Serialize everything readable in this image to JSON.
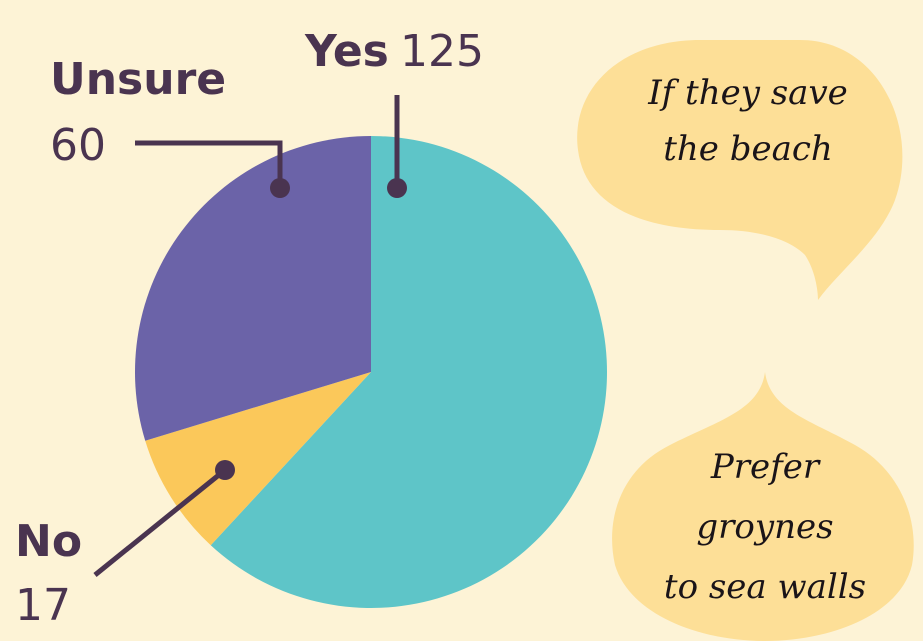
{
  "chart_data": {
    "type": "pie",
    "categories": [
      "Yes",
      "No",
      "Unsure"
    ],
    "values": [
      125,
      17,
      60
    ],
    "colors": [
      "#5ec5c8",
      "#fbc85a",
      "#6b63a8"
    ],
    "annotations": [
      [
        "If they save",
        "the beach"
      ],
      [
        "Prefer",
        "groynes",
        "to sea walls"
      ]
    ]
  }
}
